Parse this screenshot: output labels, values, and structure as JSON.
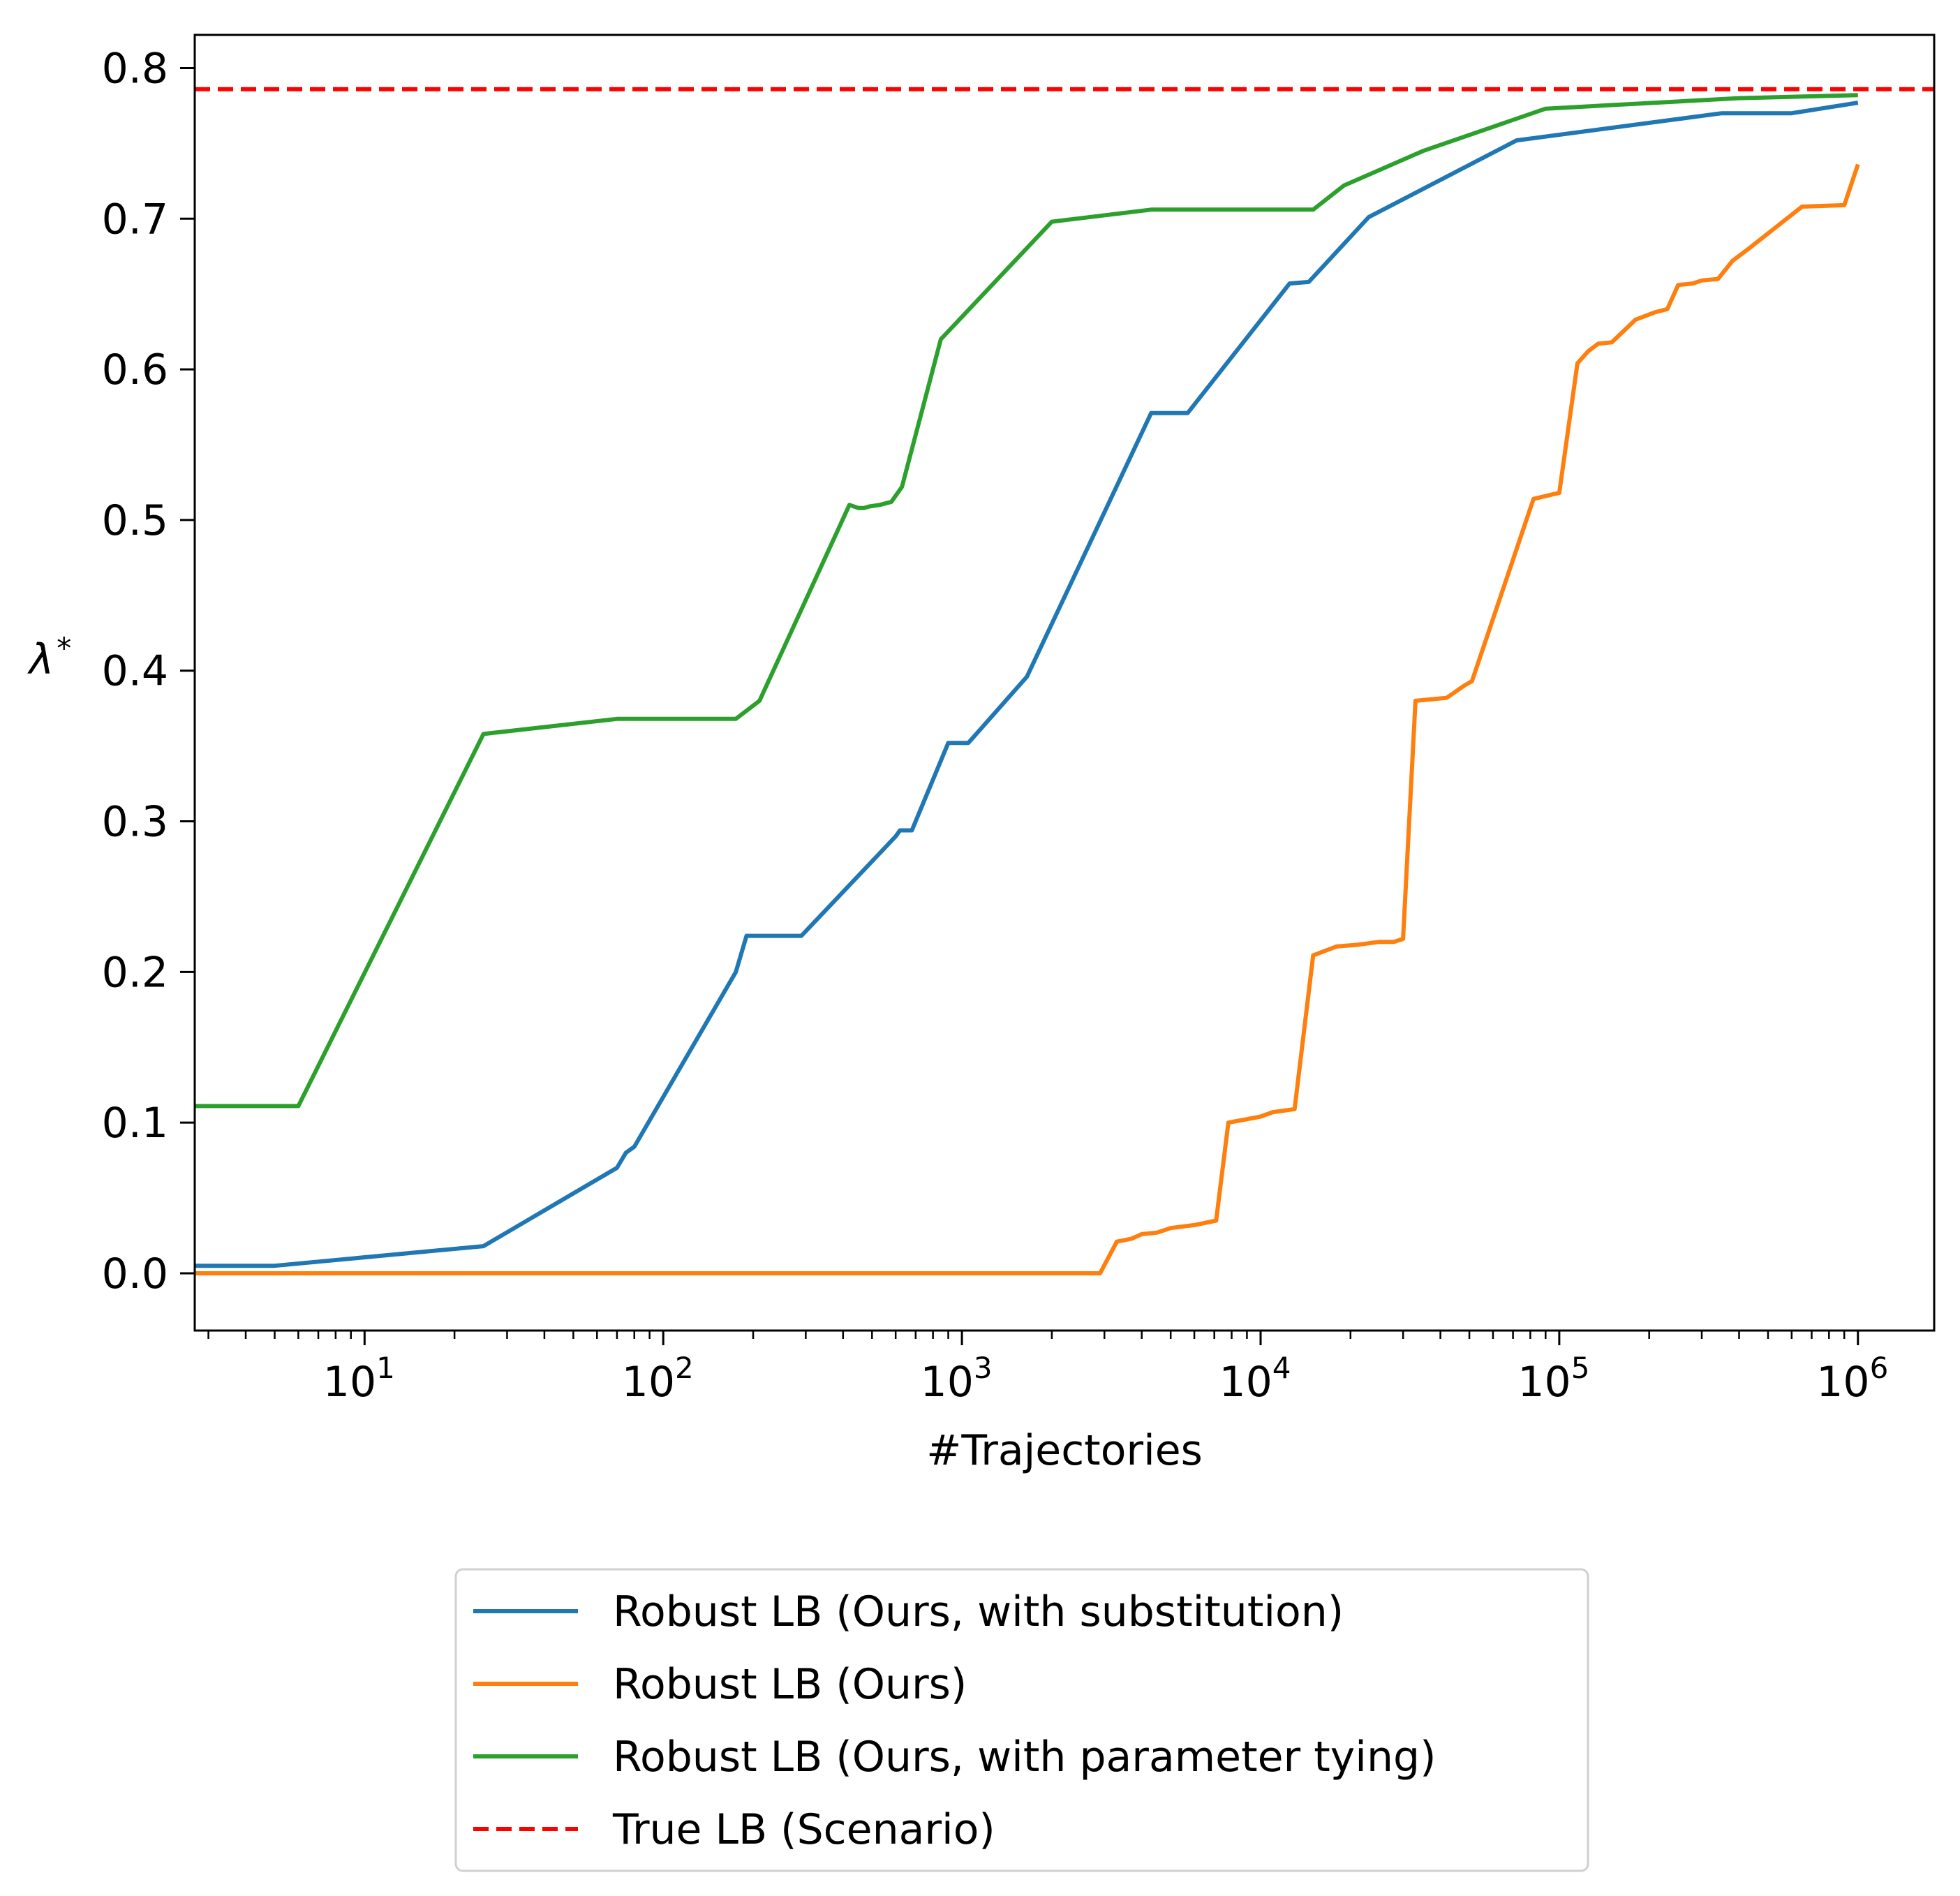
{
  "chart_data": {
    "type": "line",
    "title": "",
    "xlabel": "#Trajectories",
    "ylabel": "λ",
    "ylabel_sup": "*",
    "x_scale": "log",
    "xlim": [
      2.7,
      1800000
    ],
    "ylim": [
      -0.038,
      0.822
    ],
    "x_ticks": [
      10,
      100,
      1000,
      10000,
      100000,
      1000000
    ],
    "x_tick_labels": [
      {
        "base": "10",
        "exp": "1"
      },
      {
        "base": "10",
        "exp": "2"
      },
      {
        "base": "10",
        "exp": "3"
      },
      {
        "base": "10",
        "exp": "4"
      },
      {
        "base": "10",
        "exp": "5"
      },
      {
        "base": "10",
        "exp": "6"
      }
    ],
    "y_ticks": [
      0.0,
      0.1,
      0.2,
      0.3,
      0.4,
      0.5,
      0.6,
      0.7,
      0.8
    ],
    "y_tick_labels": [
      "0.0",
      "0.1",
      "0.2",
      "0.3",
      "0.4",
      "0.5",
      "0.6",
      "0.7",
      "0.8"
    ],
    "grid": false,
    "legend_position": "below plot, centered",
    "series": [
      {
        "name": "Robust LB (Ours, with substitution)",
        "color": "#1f77b4",
        "style": "solid",
        "points": [
          [
            2.7,
            0.005
          ],
          [
            5,
            0.005
          ],
          [
            25,
            0.018
          ],
          [
            70,
            0.07
          ],
          [
            75,
            0.08
          ],
          [
            80,
            0.084
          ],
          [
            175,
            0.2
          ],
          [
            190,
            0.224
          ],
          [
            290,
            0.224
          ],
          [
            600,
            0.29
          ],
          [
            620,
            0.294
          ],
          [
            680,
            0.294
          ],
          [
            900,
            0.352
          ],
          [
            1050,
            0.352
          ],
          [
            1650,
            0.396
          ],
          [
            4300,
            0.571
          ],
          [
            5700,
            0.571
          ],
          [
            12500,
            0.657
          ],
          [
            14500,
            0.658
          ],
          [
            23000,
            0.701
          ],
          [
            72000,
            0.752
          ],
          [
            350000,
            0.77
          ],
          [
            600000,
            0.77
          ],
          [
            1000000,
            0.777
          ]
        ]
      },
      {
        "name": "Robust LB (Ours)",
        "color": "#ff7f0e",
        "style": "solid",
        "points": [
          [
            2.7,
            0.0
          ],
          [
            2900,
            0.0
          ],
          [
            3300,
            0.021
          ],
          [
            3700,
            0.023
          ],
          [
            4000,
            0.026
          ],
          [
            4500,
            0.027
          ],
          [
            5000,
            0.03
          ],
          [
            6000,
            0.032
          ],
          [
            7100,
            0.035
          ],
          [
            7800,
            0.1
          ],
          [
            10000,
            0.104
          ],
          [
            11000,
            0.107
          ],
          [
            13000,
            0.109
          ],
          [
            15000,
            0.211
          ],
          [
            18000,
            0.217
          ],
          [
            21000,
            0.218
          ],
          [
            25000,
            0.22
          ],
          [
            28000,
            0.22
          ],
          [
            30000,
            0.222
          ],
          [
            33000,
            0.38
          ],
          [
            42000,
            0.382
          ],
          [
            48000,
            0.39
          ],
          [
            51000,
            0.393
          ],
          [
            82000,
            0.514
          ],
          [
            95000,
            0.517
          ],
          [
            100000,
            0.518
          ],
          [
            115000,
            0.604
          ],
          [
            125000,
            0.612
          ],
          [
            135000,
            0.617
          ],
          [
            150000,
            0.618
          ],
          [
            180000,
            0.633
          ],
          [
            210000,
            0.638
          ],
          [
            230000,
            0.64
          ],
          [
            250000,
            0.656
          ],
          [
            280000,
            0.657
          ],
          [
            300000,
            0.659
          ],
          [
            340000,
            0.66
          ],
          [
            380000,
            0.672
          ],
          [
            430000,
            0.68
          ],
          [
            650000,
            0.708
          ],
          [
            900000,
            0.709
          ],
          [
            1000000,
            0.736
          ]
        ]
      },
      {
        "name": "Robust LB (Ours, with parameter tying)",
        "color": "#2ca02c",
        "style": "solid",
        "points": [
          [
            2.7,
            0.111
          ],
          [
            6,
            0.111
          ],
          [
            25,
            0.358
          ],
          [
            70,
            0.368
          ],
          [
            175,
            0.368
          ],
          [
            210,
            0.38
          ],
          [
            420,
            0.51
          ],
          [
            450,
            0.508
          ],
          [
            470,
            0.508
          ],
          [
            490,
            0.509
          ],
          [
            530,
            0.51
          ],
          [
            580,
            0.512
          ],
          [
            630,
            0.522
          ],
          [
            850,
            0.62
          ],
          [
            2000,
            0.698
          ],
          [
            4300,
            0.706
          ],
          [
            15000,
            0.706
          ],
          [
            19000,
            0.722
          ],
          [
            35000,
            0.745
          ],
          [
            90000,
            0.773
          ],
          [
            400000,
            0.78
          ],
          [
            1000000,
            0.782
          ]
        ]
      },
      {
        "name": "True LB (Scenario)",
        "color": "#ff0000",
        "style": "dashed",
        "points": [
          [
            2.7,
            0.786
          ],
          [
            1800000,
            0.786
          ]
        ]
      }
    ]
  }
}
